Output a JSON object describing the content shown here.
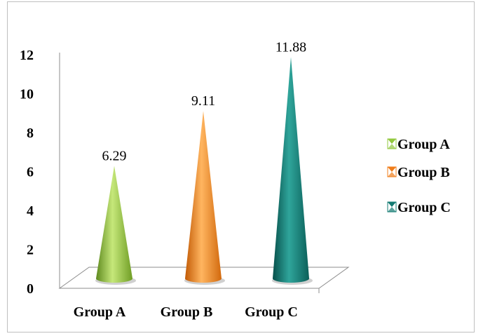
{
  "chart_data": {
    "type": "bar",
    "categories": [
      "Group A",
      "Group B",
      "Group C"
    ],
    "values": [
      6.29,
      9.11,
      11.88
    ],
    "data_labels": [
      "6.29",
      "9.11",
      "11.88"
    ],
    "ylim": [
      0,
      12
    ],
    "yticks": [
      "0",
      "2",
      "4",
      "6",
      "8",
      "10",
      "12"
    ],
    "legend_position": "right",
    "legend": [
      "Group A",
      "Group B",
      "Group C"
    ],
    "colors": [
      "#92c83e",
      "#f07d1a",
      "#127a72"
    ],
    "grid": false,
    "style": "3d-cone"
  }
}
